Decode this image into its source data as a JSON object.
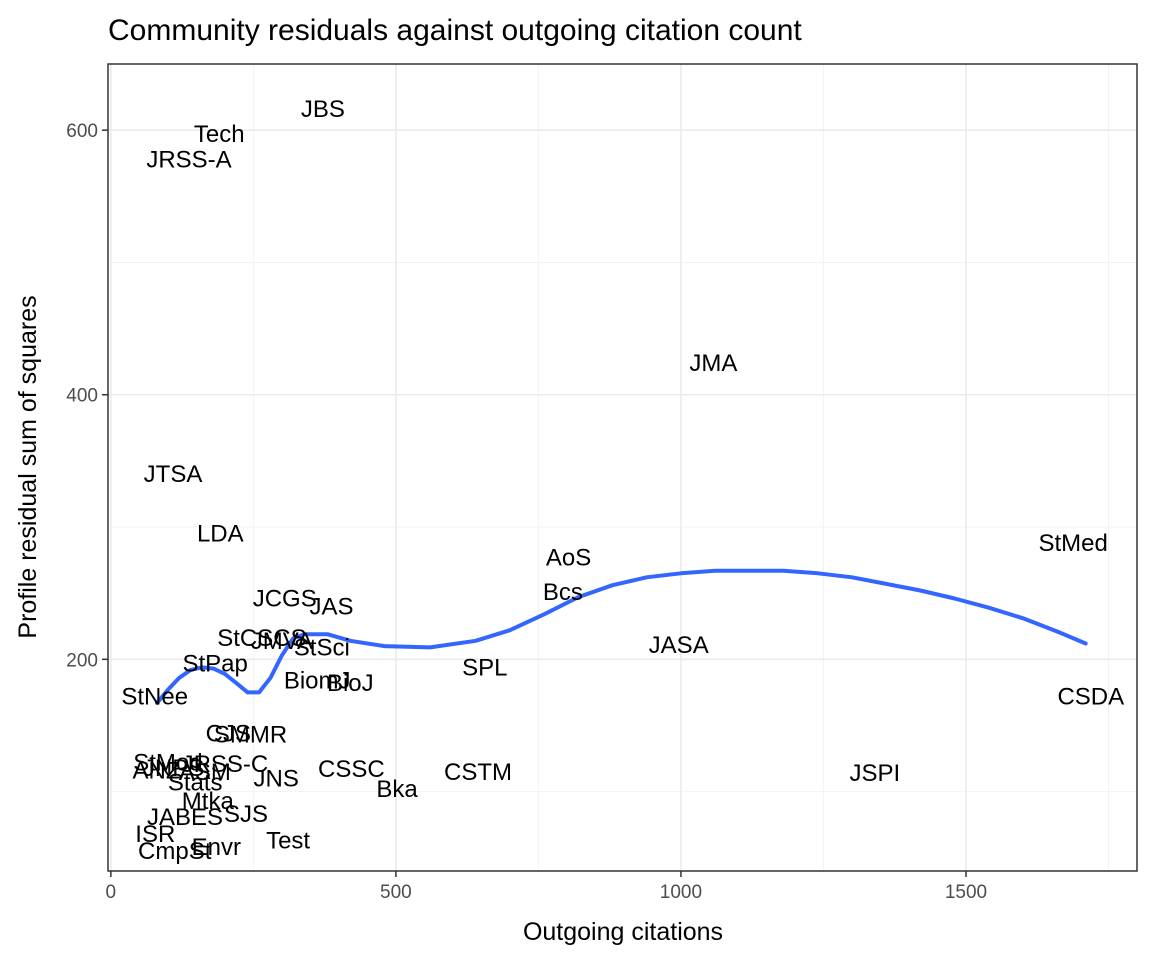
{
  "chart_data": {
    "type": "scatter",
    "title": "Community residuals against outgoing citation count",
    "xlabel": "Outgoing citations",
    "ylabel": "Profile residual sum of squares",
    "xlim": [
      -5,
      1800
    ],
    "ylim": [
      40,
      650
    ],
    "x_ticks": [
      0,
      500,
      1000,
      1500
    ],
    "y_ticks": [
      200,
      400,
      600
    ],
    "x_minor_ticks": [
      250,
      750,
      1250,
      1750
    ],
    "y_minor_ticks": [
      100,
      300,
      500
    ],
    "grid": true,
    "legend": "none",
    "colors": {
      "smooth": "#3366ff",
      "text": "#000000",
      "panel_border": "#333333",
      "grid": "#ebebeb"
    },
    "points": [
      {
        "label": "JBS",
        "x": 372,
        "y": 616
      },
      {
        "label": "Tech",
        "x": 190,
        "y": 597
      },
      {
        "label": "JRSS-A",
        "x": 137,
        "y": 578
      },
      {
        "label": "JMA",
        "x": 1057,
        "y": 424
      },
      {
        "label": "JTSA",
        "x": 109,
        "y": 340
      },
      {
        "label": "LDA",
        "x": 192,
        "y": 295
      },
      {
        "label": "StMed",
        "x": 1688,
        "y": 288
      },
      {
        "label": "AoS",
        "x": 803,
        "y": 277
      },
      {
        "label": "Bcs",
        "x": 793,
        "y": 251
      },
      {
        "label": "JCGS",
        "x": 305,
        "y": 246
      },
      {
        "label": "JAS",
        "x": 387,
        "y": 240
      },
      {
        "label": "StCSCS",
        "x": 265,
        "y": 216
      },
      {
        "label": "JMVA",
        "x": 300,
        "y": 214
      },
      {
        "label": "StSci",
        "x": 370,
        "y": 209
      },
      {
        "label": "JASA",
        "x": 996,
        "y": 211
      },
      {
        "label": "StPap",
        "x": 183,
        "y": 197
      },
      {
        "label": "SPL",
        "x": 656,
        "y": 194
      },
      {
        "label": "BiomJ",
        "x": 362,
        "y": 184
      },
      {
        "label": "BioJ",
        "x": 420,
        "y": 182
      },
      {
        "label": "StNee",
        "x": 77,
        "y": 172
      },
      {
        "label": "CSDA",
        "x": 1719,
        "y": 172
      },
      {
        "label": "CJS",
        "x": 206,
        "y": 144
      },
      {
        "label": "SMMR",
        "x": 245,
        "y": 143
      },
      {
        "label": "StMod",
        "x": 100,
        "y": 122
      },
      {
        "label": "JRSS-C",
        "x": 200,
        "y": 121
      },
      {
        "label": "ANZ",
        "x": 80,
        "y": 116
      },
      {
        "label": "JNPS",
        "x": 110,
        "y": 118
      },
      {
        "label": "ASM",
        "x": 165,
        "y": 115
      },
      {
        "label": "CSSC",
        "x": 422,
        "y": 117
      },
      {
        "label": "CSTM",
        "x": 644,
        "y": 115
      },
      {
        "label": "JSPI",
        "x": 1340,
        "y": 114
      },
      {
        "label": "JNS",
        "x": 290,
        "y": 110
      },
      {
        "label": "Stats",
        "x": 148,
        "y": 107
      },
      {
        "label": "Bka",
        "x": 502,
        "y": 102
      },
      {
        "label": "Mtka",
        "x": 170,
        "y": 93
      },
      {
        "label": "JABES",
        "x": 130,
        "y": 81
      },
      {
        "label": "SJS",
        "x": 237,
        "y": 83
      },
      {
        "label": "ISR",
        "x": 78,
        "y": 68
      },
      {
        "label": "Test",
        "x": 311,
        "y": 63
      },
      {
        "label": "Envr",
        "x": 185,
        "y": 58
      },
      {
        "label": "CmpSt",
        "x": 112,
        "y": 55
      }
    ],
    "smooth": {
      "x": [
        81,
        100,
        120,
        140,
        160,
        180,
        200,
        220,
        240,
        260,
        280,
        300,
        320,
        340,
        380,
        420,
        480,
        560,
        640,
        700,
        760,
        820,
        880,
        940,
        1000,
        1060,
        1120,
        1180,
        1240,
        1300,
        1360,
        1420,
        1480,
        1540,
        1600,
        1660,
        1710
      ],
      "y": [
        167,
        177,
        186,
        192,
        194,
        193,
        189,
        182,
        175,
        175,
        186,
        203,
        216,
        219,
        219,
        214,
        210,
        209,
        214,
        222,
        234,
        247,
        256,
        262,
        265,
        267,
        267,
        267,
        265,
        262,
        257,
        252,
        246,
        239,
        231,
        221,
        212
      ]
    }
  }
}
